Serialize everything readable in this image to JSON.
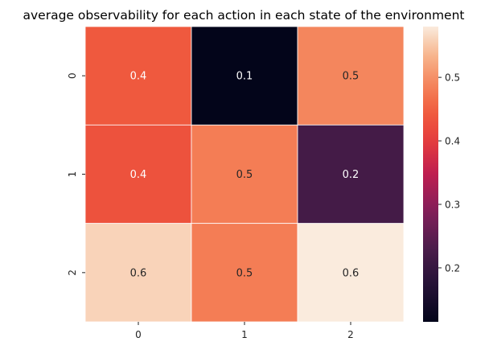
{
  "chart_data": {
    "type": "heatmap",
    "title": "average observability for each action in each state of the environment",
    "xlabel": "",
    "ylabel": "",
    "x_categories": [
      "0",
      "1",
      "2"
    ],
    "y_categories": [
      "0",
      "1",
      "2"
    ],
    "values": [
      [
        0.44,
        0.115,
        0.49
      ],
      [
        0.43,
        0.48,
        0.22
      ],
      [
        0.56,
        0.48,
        0.58
      ]
    ],
    "annotations": [
      [
        "0.4",
        "0.1",
        "0.5"
      ],
      [
        "0.4",
        "0.5",
        "0.2"
      ],
      [
        "0.6",
        "0.5",
        "0.6"
      ]
    ],
    "colorbar": {
      "vmin": 0.115,
      "vmax": 0.58,
      "ticks": [
        0.2,
        0.3,
        0.4,
        0.5
      ],
      "tick_labels": [
        "0.2",
        "0.3",
        "0.4",
        "0.5"
      ],
      "colormap": "rocket"
    },
    "grid": false,
    "legend": "colorbar-right"
  }
}
